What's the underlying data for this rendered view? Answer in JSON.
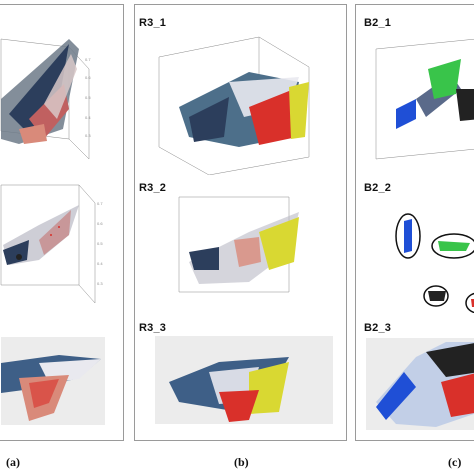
{
  "panels": [
    {
      "id": "a",
      "subfigures": []
    },
    {
      "id": "b",
      "subfigures": [
        "R3_1",
        "R3_2",
        "R3_3"
      ]
    },
    {
      "id": "c",
      "subfigures": [
        "B2_1",
        "B2_2",
        "B2_3"
      ]
    }
  ],
  "captions": {
    "a": "(a)",
    "b": "(b)",
    "c": "(c)"
  },
  "plot_colors": {
    "navy": "#2c3e5c",
    "teal": "#3f7f86",
    "red": "#d9302a",
    "salmon": "#d98a7a",
    "yellow": "#d9d832",
    "olive": "#a5a848",
    "green": "#39c44a",
    "blue": "#1f4fd6",
    "grey": "#9a9a9a",
    "white_cloud": "#e9e9ef"
  }
}
